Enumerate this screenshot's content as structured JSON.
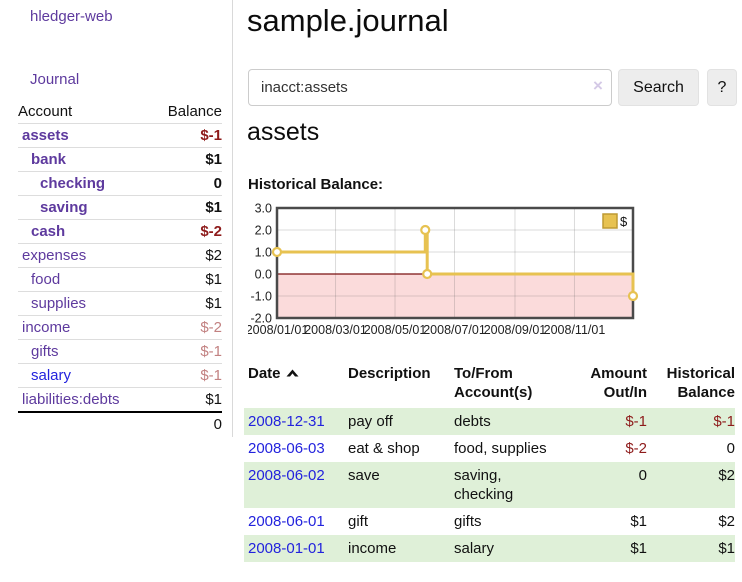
{
  "app": {
    "brand": "hledger-web"
  },
  "sidebar": {
    "nav": [
      {
        "label": "Journal"
      }
    ],
    "table": {
      "headers": [
        "Account",
        "Balance"
      ],
      "rows": [
        {
          "name": "assets",
          "balance": "$-1",
          "depth": 1,
          "bold": true,
          "name_style": "visited",
          "balance_style": "neg-strong"
        },
        {
          "name": "bank",
          "balance": "$1",
          "depth": 2,
          "bold": true,
          "name_style": "visited",
          "balance_style": "pos"
        },
        {
          "name": "checking",
          "balance": "0",
          "depth": 3,
          "bold": true,
          "name_style": "visited",
          "balance_style": "pos"
        },
        {
          "name": "saving",
          "balance": "$1",
          "depth": 3,
          "bold": true,
          "name_style": "visited",
          "balance_style": "pos"
        },
        {
          "name": "cash",
          "balance": "$-2",
          "depth": 2,
          "bold": true,
          "name_style": "visited",
          "balance_style": "neg-strong"
        },
        {
          "name": "expenses",
          "balance": "$2",
          "depth": 1,
          "bold": false,
          "name_style": "visited",
          "balance_style": "pos"
        },
        {
          "name": "food",
          "balance": "$1",
          "depth": 2,
          "bold": false,
          "name_style": "visited",
          "balance_style": "pos"
        },
        {
          "name": "supplies",
          "balance": "$1",
          "depth": 2,
          "bold": false,
          "name_style": "visited",
          "balance_style": "pos"
        },
        {
          "name": "income",
          "balance": "$-2",
          "depth": 1,
          "bold": false,
          "name_style": "visited",
          "balance_style": "neg-soft"
        },
        {
          "name": "gifts",
          "balance": "$-1",
          "depth": 2,
          "bold": false,
          "name_style": "visited",
          "balance_style": "neg-soft"
        },
        {
          "name": "salary",
          "balance": "$-1",
          "depth": 2,
          "bold": false,
          "name_style": "unvisited",
          "balance_style": "neg-soft"
        },
        {
          "name": "liabilities:debts",
          "balance": "$1",
          "depth": 1,
          "bold": false,
          "name_style": "visited",
          "balance_style": "pos"
        }
      ],
      "total": "0"
    }
  },
  "header": {
    "title": "sample.journal"
  },
  "search": {
    "value": "inacct:assets",
    "clear_icon": "×",
    "button_label": "Search",
    "help_label": "?"
  },
  "account_page": {
    "heading": "assets",
    "chart_label": "Historical Balance:"
  },
  "chart_data": {
    "type": "line",
    "title": "Historical Balance",
    "step": "after",
    "series": [
      {
        "name": "$",
        "color": "#e7c251",
        "points": [
          [
            "2008-01-01",
            1
          ],
          [
            "2008-06-01",
            2
          ],
          [
            "2008-06-03",
            0
          ],
          [
            "2008-12-31",
            -1
          ]
        ]
      }
    ],
    "x_range": [
      "2008-01-01",
      "2008-12-31"
    ],
    "x_ticks": [
      "2008/01/01",
      "2008/03/01",
      "2008/05/01",
      "2008/07/01",
      "2008/09/01",
      "2008/11/01"
    ],
    "y_ticks": [
      "3.0",
      "2.0",
      "1.0",
      "0.0",
      "-1.0",
      "-2.0"
    ],
    "ylim": [
      -2,
      3
    ],
    "grid": true,
    "legend": {
      "position": "top-right",
      "entries": [
        {
          "label": "$",
          "color": "#e7c251"
        }
      ]
    },
    "negative_region_color": "#fbdbdb",
    "zero_line_color": "#7a1010",
    "frame_color": "#4a4a4a"
  },
  "register": {
    "columns": [
      {
        "label": "Date",
        "sort": "asc"
      },
      {
        "label": "Description"
      },
      {
        "label": "To/From\nAccount(s)"
      },
      {
        "label": "Amount\nOut/In"
      },
      {
        "label": "Historical\nBalance"
      }
    ],
    "rows": [
      {
        "date": "2008-12-31",
        "description": "pay off",
        "accounts": "debts",
        "amount": "$-1",
        "balance": "$-1",
        "amount_neg": true,
        "balance_neg": true
      },
      {
        "date": "2008-06-03",
        "description": "eat & shop",
        "accounts": "food, supplies",
        "amount": "$-2",
        "balance": "0",
        "amount_neg": true,
        "balance_neg": false
      },
      {
        "date": "2008-06-02",
        "description": "save",
        "accounts": "saving, checking",
        "amount": "0",
        "balance": "$2",
        "amount_neg": false,
        "balance_neg": false
      },
      {
        "date": "2008-06-01",
        "description": "gift",
        "accounts": "gifts",
        "amount": "$1",
        "balance": "$2",
        "amount_neg": false,
        "balance_neg": false
      },
      {
        "date": "2008-01-01",
        "description": "income",
        "accounts": "salary",
        "amount": "$1",
        "balance": "$1",
        "amount_neg": false,
        "balance_neg": false
      }
    ]
  }
}
